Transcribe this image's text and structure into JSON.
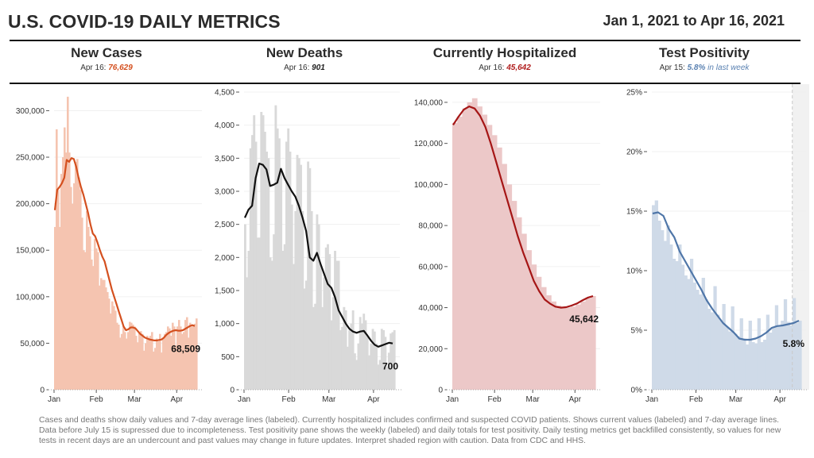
{
  "header": {
    "title": "U.S. COVID-19 DAILY METRICS",
    "date_range": "Jan 1, 2021 to Apr 16, 2021"
  },
  "panels": [
    {
      "title": "New Cases",
      "sub_prefix": "Apr 16: ",
      "sub_value": "76,629",
      "sub_suffix": "",
      "value_color": "#d4501f"
    },
    {
      "title": "New Deaths",
      "sub_prefix": "Apr 16: ",
      "sub_value": "901",
      "sub_suffix": "",
      "value_color": "#222222"
    },
    {
      "title": "Currently Hospitalized",
      "sub_prefix": "Apr 16: ",
      "sub_value": "45,642",
      "sub_suffix": "",
      "value_color": "#b01c1c"
    },
    {
      "title": "Test Positivity",
      "sub_prefix": "Apr 15: ",
      "sub_value": "5.8%",
      "sub_suffix": " in last week",
      "value_color": "#5b82b2"
    }
  ],
  "footnote": "Cases and deaths show daily values and 7-day average lines (labeled). Currently hospitalized includes confirmed and suspected COVID patients. Shows current values (labeled) and 7-day average lines. Data before July 15 is supressed due to incompleteness. Test positivity pane shows the weekly (labeled) and daily totals for test positivity. Daily testing metrics get backfilled consistently, so values for new tests in recent days are an undercount and past values may change in future updates. Interpret shaded region with caution. Data from CDC and HHS.",
  "chart_data": [
    {
      "type": "bar",
      "title": "New Cases",
      "xlabel": "",
      "ylabel": "",
      "x_ticks": [
        "Jan",
        "Feb",
        "Mar",
        "Apr"
      ],
      "y_ticks": [
        "0",
        "50,000",
        "100,000",
        "150,000",
        "200,000",
        "250,000",
        "300,000"
      ],
      "ylim": [
        0,
        320000
      ],
      "grid": true,
      "bar_color": "#f5c4b0",
      "line_color": "#d4501f",
      "end_label": "68,509",
      "daily": [
        175000,
        280000,
        215000,
        175000,
        232000,
        250000,
        282000,
        255000,
        315000,
        255000,
        218000,
        200000,
        222000,
        245000,
        248000,
        228000,
        215000,
        185000,
        150000,
        148000,
        192000,
        175000,
        165000,
        140000,
        133000,
        162000,
        152000,
        148000,
        112000,
        120000,
        118000,
        118000,
        110000,
        105000,
        98000,
        82000,
        95000,
        90000,
        85000,
        72000,
        70000,
        56000,
        60000,
        68000,
        62000,
        55000,
        62000,
        73000,
        72000,
        70000,
        68000,
        58000,
        51000,
        62000,
        63000,
        60000,
        42000,
        50000,
        58000,
        56000,
        58000,
        62000,
        41000,
        45000,
        55000,
        52000,
        60000,
        40000,
        55000,
        60000,
        62000,
        68000,
        66000,
        58000,
        72000,
        68000,
        48000,
        68000,
        75000,
        68000,
        60000,
        62000,
        75000,
        78000,
        56000,
        72000,
        68000,
        70000,
        71000,
        76629
      ],
      "avg7": [
        193000,
        215000,
        218000,
        222000,
        228000,
        247000,
        245000,
        249000,
        248000,
        240000,
        228000,
        218000,
        210000,
        200000,
        190000,
        178000,
        168000,
        165000,
        158000,
        150000,
        143000,
        138000,
        128000,
        118000,
        108000,
        100000,
        92000,
        84000,
        76000,
        68000,
        64000,
        65000,
        67000,
        67000,
        66000,
        63000,
        60000,
        58000,
        56000,
        55000,
        54000,
        53500,
        53000,
        53000,
        53500,
        54000,
        56000,
        59000,
        61000,
        62500,
        63500,
        64000,
        63500,
        63500,
        64000,
        65500,
        67000,
        68500,
        69500,
        68509
      ]
    },
    {
      "type": "bar",
      "title": "New Deaths",
      "xlabel": "",
      "ylabel": "",
      "x_ticks": [
        "Jan",
        "Feb",
        "Mar",
        "Apr"
      ],
      "y_ticks": [
        "0",
        "500",
        "1,000",
        "1,500",
        "2,000",
        "2,500",
        "3,000",
        "3,500",
        "4,000",
        "4,500"
      ],
      "ylim": [
        0,
        4500
      ],
      "grid": true,
      "bar_color": "#d9d9d9",
      "line_color": "#111111",
      "end_label": "700",
      "daily": [
        2500,
        1700,
        2100,
        3650,
        3850,
        4150,
        3750,
        2300,
        2300,
        4200,
        4150,
        3900,
        3600,
        3500,
        2000,
        1950,
        2350,
        4300,
        3950,
        3800,
        3300,
        2100,
        2200,
        3750,
        3950,
        3600,
        2800,
        1900,
        2700,
        3550,
        3500,
        3400,
        2700,
        1530,
        1650,
        3450,
        3350,
        2700,
        1250,
        1300,
        2650,
        2500,
        1900,
        1250,
        1700,
        2150,
        2200,
        2050,
        1050,
        1400,
        2100,
        1950,
        1950,
        900,
        950,
        1250,
        1200,
        650,
        900,
        1000,
        1200,
        550,
        450,
        700,
        1100,
        1000,
        1150,
        1050,
        800,
        520,
        700,
        920,
        880,
        700,
        380,
        450,
        920,
        900,
        800,
        350,
        560,
        850,
        870,
        901
      ],
      "avg7": [
        2600,
        2720,
        2780,
        3200,
        3420,
        3400,
        3330,
        3080,
        3100,
        3130,
        3340,
        3200,
        3100,
        3000,
        2920,
        2780,
        2600,
        2400,
        2000,
        1950,
        2070,
        1900,
        1750,
        1600,
        1540,
        1400,
        1200,
        1100,
        1000,
        920,
        880,
        860,
        880,
        890,
        820,
        740,
        680,
        650,
        670,
        690,
        710,
        700
      ]
    },
    {
      "type": "area",
      "title": "Currently Hospitalized",
      "xlabel": "",
      "ylabel": "",
      "x_ticks": [
        "Jan",
        "Feb",
        "Mar",
        "Apr"
      ],
      "y_ticks": [
        "0",
        "20,000",
        "40,000",
        "60,000",
        "80,000",
        "100,000",
        "120,000",
        "140,000"
      ],
      "ylim": [
        0,
        145000
      ],
      "grid": true,
      "bar_color": "#ecc8c8",
      "line_color": "#a51616",
      "end_label": "45,642",
      "daily": [
        130000,
        133000,
        137000,
        140000,
        142000,
        138000,
        134000,
        129000,
        124000,
        118000,
        110000,
        100000,
        92000,
        84000,
        76000,
        68000,
        61000,
        55000,
        50000,
        46000,
        43000,
        41000,
        40000,
        40000,
        40500,
        41500,
        43000,
        44500,
        45642
      ],
      "avg7": [
        129000,
        133000,
        136500,
        138000,
        137000,
        133500,
        128000,
        120000,
        111000,
        102000,
        93000,
        84000,
        75000,
        67000,
        60000,
        53000,
        48000,
        44000,
        42000,
        40500,
        40000,
        40200,
        41000,
        42000,
        43500,
        44800,
        45642
      ]
    },
    {
      "type": "bar",
      "title": "Test Positivity",
      "xlabel": "",
      "ylabel": "",
      "x_ticks": [
        "Jan",
        "Feb",
        "Mar",
        "Apr"
      ],
      "y_ticks": [
        "0%",
        "5%",
        "10%",
        "15%",
        "20%",
        "25%"
      ],
      "ylim": [
        0,
        25
      ],
      "grid": true,
      "bar_color": "#cfdae8",
      "line_color": "#4f76a8",
      "shade_color": "#f1f1f1",
      "end_label": "5.8%",
      "shaded_from": "Apr 9",
      "daily": [
        15.5,
        15.9,
        14.2,
        13.4,
        12.5,
        13.8,
        12.2,
        11.0,
        10.8,
        12.2,
        10.5,
        9.6,
        9.3,
        11.0,
        9.0,
        8.4,
        8.0,
        9.4,
        7.6,
        6.8,
        6.5,
        8.7,
        6.3,
        5.8,
        7.2,
        5.3,
        4.9,
        7.0,
        4.7,
        4.5,
        6.0,
        4.3,
        3.8,
        5.8,
        4.0,
        3.9,
        6.0,
        4.0,
        4.2,
        6.3,
        4.8,
        5.3,
        7.1,
        5.4,
        5.8,
        7.6,
        5.7,
        5.4,
        7.7,
        5.6,
        5.8
      ],
      "avg7": [
        14.8,
        14.9,
        14.6,
        13.5,
        12.8,
        11.6,
        10.8,
        10.0,
        9.2,
        8.4,
        7.5,
        6.8,
        6.2,
        5.6,
        5.2,
        4.8,
        4.3,
        4.2,
        4.2,
        4.3,
        4.5,
        4.8,
        5.2,
        5.35,
        5.4,
        5.5,
        5.6,
        5.8
      ]
    }
  ]
}
